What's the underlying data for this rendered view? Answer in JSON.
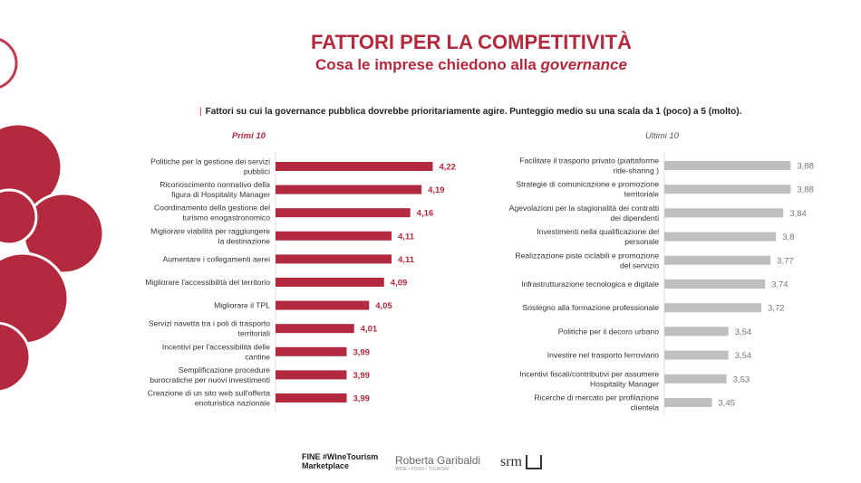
{
  "header": {
    "title": "FATTORI PER LA COMPETITIVITÀ",
    "subtitle_prefix": "Cosa le imprese chiedono alla ",
    "subtitle_italic": "governance"
  },
  "description": "Fattori su cui la governance pubblica dovrebbe prioritariamente agire. Punteggio medio su una scala da 1 (poco) a 5 (molto).",
  "colors": {
    "accent": "#b3293d",
    "grey": "#bfbfbf"
  },
  "chart_data": [
    {
      "type": "bar",
      "orientation": "horizontal",
      "title": "Primi 10",
      "color": "#b3293d",
      "xlim": [
        3.8,
        4.25
      ],
      "categories": [
        [
          "Politiche per la gestione dei servizi",
          "pubblici"
        ],
        [
          "Riconoscimento normativo della",
          "figura di Hospitality Manager"
        ],
        [
          "Coordinamento della gestione del",
          "turismo enogastronomico"
        ],
        [
          "Migliorare viabilità per raggiungere",
          "la destinazione"
        ],
        [
          "Aumentare i collegamenti aerei"
        ],
        [
          "Migliorare l'accessibilità del territorio"
        ],
        [
          "Migliorare il TPL"
        ],
        [
          "Servizi navetta tra i poli di trasporto",
          "territoriali"
        ],
        [
          "Incentivi per l'accessibilità delle",
          "cantine"
        ],
        [
          "Semplificazione procedure",
          "burocratiche per nuovi investimenti"
        ],
        [
          "Creazione di un sito web sull'offerta",
          "enoturistica nazionale"
        ]
      ],
      "values": [
        4.22,
        4.19,
        4.16,
        4.11,
        4.11,
        4.09,
        4.05,
        4.01,
        3.99,
        3.99,
        3.99
      ],
      "labels": [
        "4,22",
        "4,19",
        "4,16",
        "4,11",
        "4,11",
        "4,09",
        "4,05",
        "4,01",
        "3,99",
        "3,99",
        "3,99"
      ]
    },
    {
      "type": "bar",
      "orientation": "horizontal",
      "title": "Ultimi 10",
      "color": "#bfbfbf",
      "xlim": [
        3.19,
        3.9
      ],
      "categories": [
        [
          "Facilitare il trasporto privato (piattaforme",
          "ride-sharing )"
        ],
        [
          "Strategie di comunicazione e promozione",
          "territoriale"
        ],
        [
          "Agevolazioni per la stagionalità dei contratti",
          "dei dipendenti"
        ],
        [
          "Investimenti nella qualificazione del",
          "personale"
        ],
        [
          "Realizzazione piste ciclabili e promozione",
          "del servizio"
        ],
        [
          "Infrastrutturazione tecnologica e digitale"
        ],
        [
          "Sostegno alla formazione professionale"
        ],
        [
          "Politiche per il decoro urbano"
        ],
        [
          "Investire nel trasporto ferroviario"
        ],
        [
          "Incentivi fiscali/contributivi per assumere",
          "Hospitality Manager"
        ],
        [
          "Ricerche di mercato per profilazione",
          "clientela"
        ]
      ],
      "values": [
        3.88,
        3.88,
        3.84,
        3.8,
        3.77,
        3.74,
        3.72,
        3.54,
        3.54,
        3.53,
        3.45
      ],
      "labels": [
        "3,88",
        "3,88",
        "3,84",
        "3,8",
        "3,77",
        "3,74",
        "3,72",
        "3,54",
        "3,54",
        "3,53",
        "3,45"
      ]
    }
  ],
  "footer": {
    "logo1": "FINE #WineTourism Marketplace",
    "logo2": "Roberta Garibaldi",
    "logo2_tag": "WINE • FOOD • TOURISM",
    "logo3": "srm"
  }
}
